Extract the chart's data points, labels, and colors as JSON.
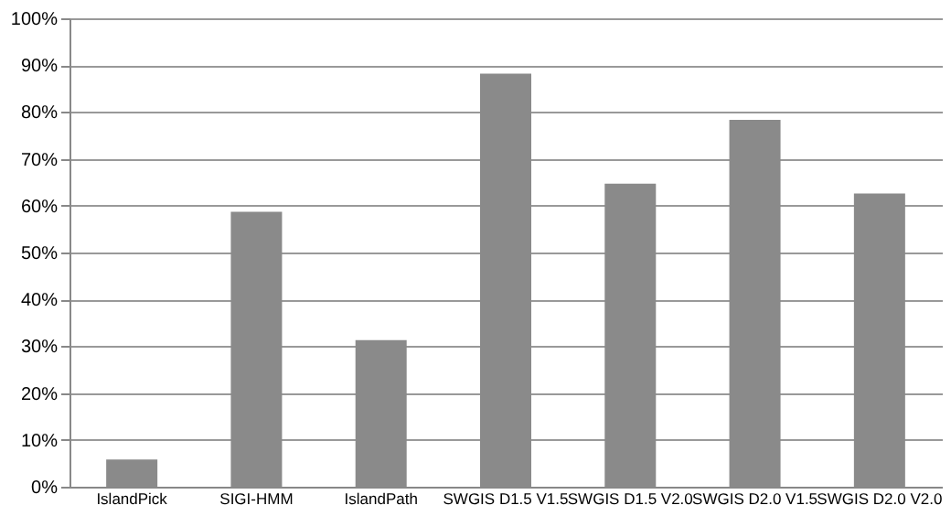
{
  "chart_data": {
    "type": "bar",
    "categories": [
      "IslandPick",
      "SIGI-HMM",
      "IslandPath",
      "SWGIS D1.5 V1.5",
      "SWGIS D1.5 V2.0",
      "SWGIS D2.0 V1.5",
      "SWGIS D2.0 V2.0"
    ],
    "values": [
      5.8,
      58.7,
      31.3,
      88.2,
      64.7,
      78.3,
      62.6
    ],
    "color": "#8a8a8a",
    "ylim": [
      0,
      100
    ],
    "yticks": [
      {
        "value": 0,
        "label": "0%"
      },
      {
        "value": 10,
        "label": "10%"
      },
      {
        "value": 20,
        "label": "20%"
      },
      {
        "value": 30,
        "label": "30%"
      },
      {
        "value": 40,
        "label": "40%"
      },
      {
        "value": 50,
        "label": "50%"
      },
      {
        "value": 60,
        "label": "60%"
      },
      {
        "value": 70,
        "label": "70%"
      },
      {
        "value": 80,
        "label": "80%"
      },
      {
        "value": 90,
        "label": "90%"
      },
      {
        "value": 100,
        "label": "100%"
      }
    ],
    "grid": "y"
  }
}
